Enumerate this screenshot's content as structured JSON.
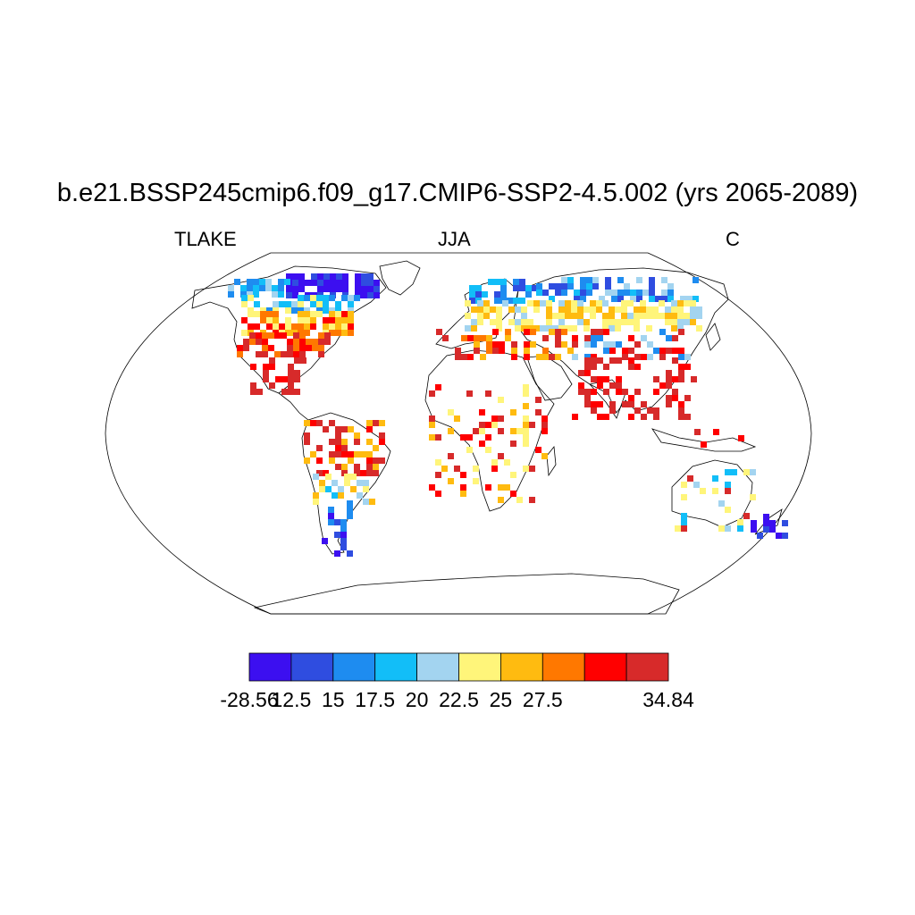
{
  "title": "b.e21.BSSP245cmip6.f09_g17.CMIP6-SSP2-4.5.002 (yrs 2065-2089)",
  "subtitle": {
    "left": "TLAKE",
    "center": "JJA",
    "right": "C"
  },
  "colorbar": {
    "colors": [
      "#3c0ff0",
      "#2f4de0",
      "#1e8cf0",
      "#12bef8",
      "#a3d4f0",
      "#fff57a",
      "#ffbb10",
      "#ff7800",
      "#ff0000",
      "#d72a2a"
    ],
    "edge_labels": [
      "-28.56",
      "12.5",
      "15",
      "17.5",
      "20",
      "22.5",
      "25",
      "27.5",
      "",
      "34.84"
    ],
    "min": "-28.56",
    "max": "34.84"
  },
  "map": {
    "projection": "robinson",
    "field": "lake temperature"
  }
}
